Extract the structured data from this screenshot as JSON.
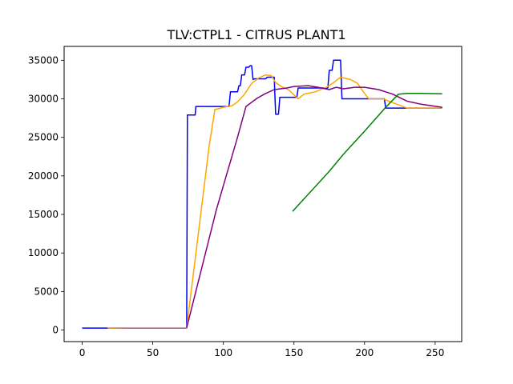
{
  "chart_data": {
    "type": "line",
    "title": "TLV:CTPL1 - CITRUS PLANT1",
    "xlabel": "",
    "ylabel": "",
    "xlim": [
      -12.8,
      268.8
    ],
    "ylim": [
      -1500,
      36800
    ],
    "xticks": [
      0,
      50,
      100,
      150,
      200,
      250
    ],
    "yticks": [
      0,
      5000,
      10000,
      15000,
      20000,
      25000,
      30000,
      35000
    ],
    "grid": false,
    "series": [
      {
        "color": "#0000ff",
        "points": [
          [
            0,
            250
          ],
          [
            18,
            250
          ],
          [
            74,
            250
          ],
          [
            74.5,
            27900
          ],
          [
            80,
            27900
          ],
          [
            80.5,
            29000
          ],
          [
            104,
            29000
          ],
          [
            105,
            30900
          ],
          [
            110,
            30900
          ],
          [
            111,
            31700
          ],
          [
            112,
            31700
          ],
          [
            113,
            33100
          ],
          [
            115,
            33100
          ],
          [
            116,
            34100
          ],
          [
            118,
            34100
          ],
          [
            119,
            34300
          ],
          [
            120,
            34300
          ],
          [
            121,
            32500
          ],
          [
            122,
            32600
          ],
          [
            130,
            32600
          ],
          [
            131,
            32800
          ],
          [
            136,
            32800
          ],
          [
            137,
            28000
          ],
          [
            139,
            28000
          ],
          [
            140,
            30200
          ],
          [
            152,
            30200
          ],
          [
            153,
            31400
          ],
          [
            174,
            31400
          ],
          [
            175,
            33700
          ],
          [
            177,
            33700
          ],
          [
            178,
            35000
          ],
          [
            183,
            35000
          ],
          [
            184,
            30000
          ],
          [
            214,
            30000
          ],
          [
            215,
            28800
          ],
          [
            230,
            28800
          ],
          [
            255,
            28800
          ]
        ]
      },
      {
        "color": "#ffa500",
        "points": [
          [
            18,
            250
          ],
          [
            30,
            300
          ],
          [
            40,
            300
          ],
          [
            48,
            300
          ],
          [
            74,
            300
          ],
          [
            90,
            24000
          ],
          [
            94,
            28600
          ],
          [
            100,
            28900
          ],
          [
            106,
            29100
          ],
          [
            110,
            29600
          ],
          [
            115,
            30600
          ],
          [
            120,
            32000
          ],
          [
            125,
            32700
          ],
          [
            130,
            33100
          ],
          [
            134,
            33000
          ],
          [
            137,
            32100
          ],
          [
            141,
            31600
          ],
          [
            146,
            31200
          ],
          [
            150,
            30500
          ],
          [
            153,
            30000
          ],
          [
            157,
            30600
          ],
          [
            165,
            30900
          ],
          [
            173,
            31500
          ],
          [
            178,
            32100
          ],
          [
            183,
            32800
          ],
          [
            190,
            32500
          ],
          [
            195,
            32000
          ],
          [
            200,
            30700
          ],
          [
            203,
            30000
          ],
          [
            213,
            30000
          ],
          [
            220,
            29500
          ],
          [
            230,
            28800
          ],
          [
            240,
            28800
          ],
          [
            255,
            28800
          ]
        ]
      },
      {
        "color": "#800080",
        "points": [
          [
            74,
            300
          ],
          [
            85,
            8300
          ],
          [
            95,
            15600
          ],
          [
            102,
            20000
          ],
          [
            110,
            25000
          ],
          [
            116,
            29000
          ],
          [
            124,
            30100
          ],
          [
            130,
            30700
          ],
          [
            136,
            31200
          ],
          [
            145,
            31400
          ],
          [
            150,
            31600
          ],
          [
            160,
            31700
          ],
          [
            167,
            31500
          ],
          [
            175,
            31200
          ],
          [
            180,
            31500
          ],
          [
            185,
            31300
          ],
          [
            193,
            31500
          ],
          [
            200,
            31500
          ],
          [
            210,
            31200
          ],
          [
            220,
            30600
          ],
          [
            230,
            29700
          ],
          [
            240,
            29300
          ],
          [
            255,
            28900
          ]
        ]
      },
      {
        "color": "#008000",
        "points": [
          [
            149,
            15400
          ],
          [
            175,
            20600
          ],
          [
            185,
            22800
          ],
          [
            200,
            25800
          ],
          [
            215,
            28900
          ],
          [
            224,
            30600
          ],
          [
            230,
            30700
          ],
          [
            240,
            30700
          ],
          [
            255,
            30650
          ]
        ]
      }
    ]
  }
}
